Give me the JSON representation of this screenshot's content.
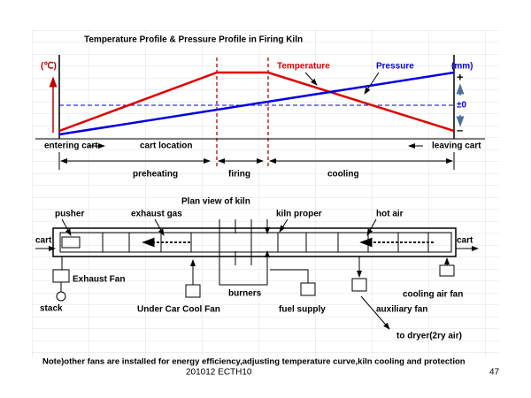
{
  "title": "Temperature Profile & Pressure Profile in Firing Kiln",
  "profile": {
    "temp_unit": "(℃)",
    "temperature": "Temperature",
    "pressure": "Pressure",
    "pressure_unit": "(mm)",
    "plus": "+",
    "zero": "±0",
    "minus": "–",
    "entering_cart": "entering cart",
    "cart_location": "cart location",
    "leaving_cart": "leaving cart",
    "zones": [
      "preheating",
      "firing",
      "cooling"
    ]
  },
  "plan": {
    "title": "Plan view of kiln",
    "pusher": "pusher",
    "exhaust_gas": "exhaust gas",
    "kiln_proper": "kiln proper",
    "hot_air": "hot air",
    "cart_in": "cart",
    "cart_out": "cart",
    "exhaust_fan": "Exhaust Fan",
    "stack": "stack",
    "under_car_cool_fan": "Under Car Cool Fan",
    "burners": "burners",
    "fuel_supply": "fuel supply",
    "auxiliary_fan": "auxiliary fan",
    "cooling_air_fan": "cooling air fan",
    "to_dryer": "to dryer(2ry air)"
  },
  "note": "Note)other fans are installed for energy efficiency,adjusting temperature curve,kiln cooling and protection",
  "footer": "201012 ECTH10",
  "page_number": "47"
}
